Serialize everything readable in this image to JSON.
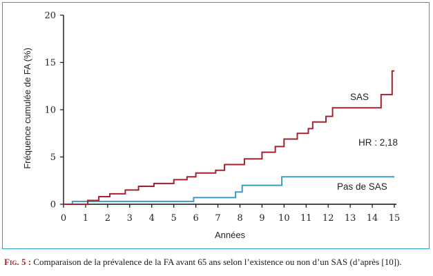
{
  "chart_data": {
    "type": "line",
    "step": true,
    "xlabel": "Années",
    "ylabel": "Fréquence cumulée de FA (%)",
    "xlim": [
      0,
      15
    ],
    "ylim": [
      0,
      20
    ],
    "x_ticks": [
      0,
      1,
      2,
      3,
      4,
      5,
      6,
      7,
      8,
      9,
      10,
      11,
      12,
      13,
      14,
      15
    ],
    "y_ticks": [
      0,
      5,
      10,
      15,
      20
    ],
    "grid": false,
    "annotations": [
      "HR : 2,18"
    ],
    "series": [
      {
        "name": "SAS",
        "color": "#a3222e",
        "points": [
          [
            0,
            0
          ],
          [
            1.1,
            0
          ],
          [
            1.1,
            0.4
          ],
          [
            1.6,
            0.4
          ],
          [
            1.6,
            0.8
          ],
          [
            2.1,
            0.8
          ],
          [
            2.1,
            1.1
          ],
          [
            2.8,
            1.1
          ],
          [
            2.8,
            1.5
          ],
          [
            3.4,
            1.5
          ],
          [
            3.4,
            1.9
          ],
          [
            4.1,
            1.9
          ],
          [
            4.1,
            2.2
          ],
          [
            5.0,
            2.2
          ],
          [
            5.0,
            2.6
          ],
          [
            5.6,
            2.6
          ],
          [
            5.6,
            2.9
          ],
          [
            6.0,
            2.9
          ],
          [
            6.0,
            3.3
          ],
          [
            6.9,
            3.3
          ],
          [
            6.9,
            3.6
          ],
          [
            7.3,
            3.6
          ],
          [
            7.3,
            4.2
          ],
          [
            8.2,
            4.2
          ],
          [
            8.2,
            4.8
          ],
          [
            9.0,
            4.8
          ],
          [
            9.0,
            5.5
          ],
          [
            9.6,
            5.5
          ],
          [
            9.6,
            6.1
          ],
          [
            10.0,
            6.1
          ],
          [
            10.0,
            6.9
          ],
          [
            10.6,
            6.9
          ],
          [
            10.6,
            7.5
          ],
          [
            11.1,
            7.5
          ],
          [
            11.1,
            8.0
          ],
          [
            11.3,
            8.0
          ],
          [
            11.3,
            8.7
          ],
          [
            11.9,
            8.7
          ],
          [
            11.9,
            9.3
          ],
          [
            12.2,
            9.3
          ],
          [
            12.2,
            10.2
          ],
          [
            14.4,
            10.2
          ],
          [
            14.4,
            11.6
          ],
          [
            14.9,
            11.6
          ],
          [
            14.9,
            14.1
          ],
          [
            15.0,
            14.1
          ]
        ]
      },
      {
        "name": "Pas de SAS",
        "color": "#3a9bc1",
        "points": [
          [
            0.1,
            0
          ],
          [
            0.4,
            0
          ],
          [
            0.4,
            0.3
          ],
          [
            5.9,
            0.3
          ],
          [
            5.9,
            0.7
          ],
          [
            7.8,
            0.7
          ],
          [
            7.8,
            1.3
          ],
          [
            8.1,
            1.3
          ],
          [
            8.1,
            2.0
          ],
          [
            9.9,
            2.0
          ],
          [
            9.9,
            2.9
          ],
          [
            15.0,
            2.9
          ]
        ]
      }
    ]
  },
  "caption": {
    "label": "Fig. 5 :",
    "text": " Comparaison de la prévalence de la FA avant 65 ans selon l’existence ou non d’un SAS (d’après [10])."
  }
}
